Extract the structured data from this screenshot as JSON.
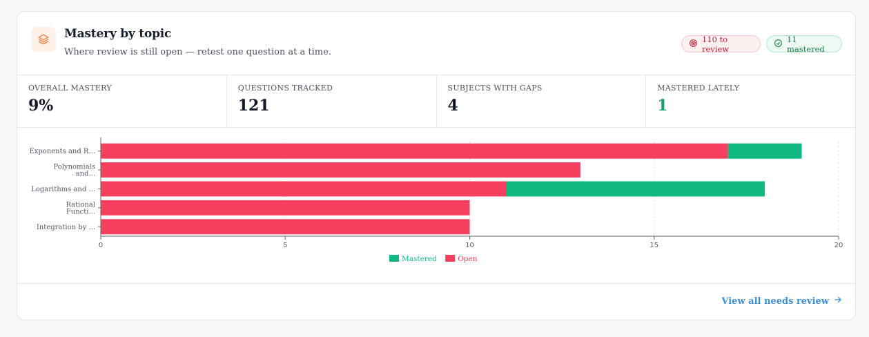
{
  "header": {
    "title": "Mastery by topic",
    "subtitle": "Where review is still open — retest one question at a time.",
    "icon": "layers-icon",
    "accent": "#e9834a"
  },
  "badges": {
    "review": {
      "label": "110 to review",
      "icon": "target-icon",
      "color": "#b4233a"
    },
    "mastered": {
      "label": "11 mastered",
      "icon": "check-circle-icon",
      "color": "#177a4a"
    }
  },
  "stats": [
    {
      "label": "Overall mastery",
      "value": "9%"
    },
    {
      "label": "Questions tracked",
      "value": "121"
    },
    {
      "label": "Subjects with gaps",
      "value": "4"
    },
    {
      "label": "Mastered lately",
      "value": "1"
    }
  ],
  "chart_data": {
    "type": "bar",
    "orientation": "horizontal",
    "stacked": true,
    "categories": [
      [
        "Exponents and R..."
      ],
      [
        "Polynomials",
        "and..."
      ],
      [
        "Logarithms and ..."
      ],
      [
        "Rational",
        "Functi..."
      ],
      [
        "Integration by ..."
      ]
    ],
    "series": [
      {
        "name": "Open",
        "color": "#f43f5e",
        "values": [
          17,
          13,
          11,
          10,
          10
        ]
      },
      {
        "name": "Mastered",
        "color": "#10b981",
        "values": [
          2,
          0,
          7,
          0,
          0
        ]
      }
    ],
    "xlim": [
      0,
      20
    ],
    "xticks": [
      0,
      5,
      10,
      15,
      20
    ],
    "grid": true,
    "legend": [
      "Mastered",
      "Open"
    ],
    "legend_position": "bottom"
  },
  "footer": {
    "link_label": "View all needs review",
    "link_icon": "arrow-right-icon",
    "link_color": "#3b8fd6"
  }
}
